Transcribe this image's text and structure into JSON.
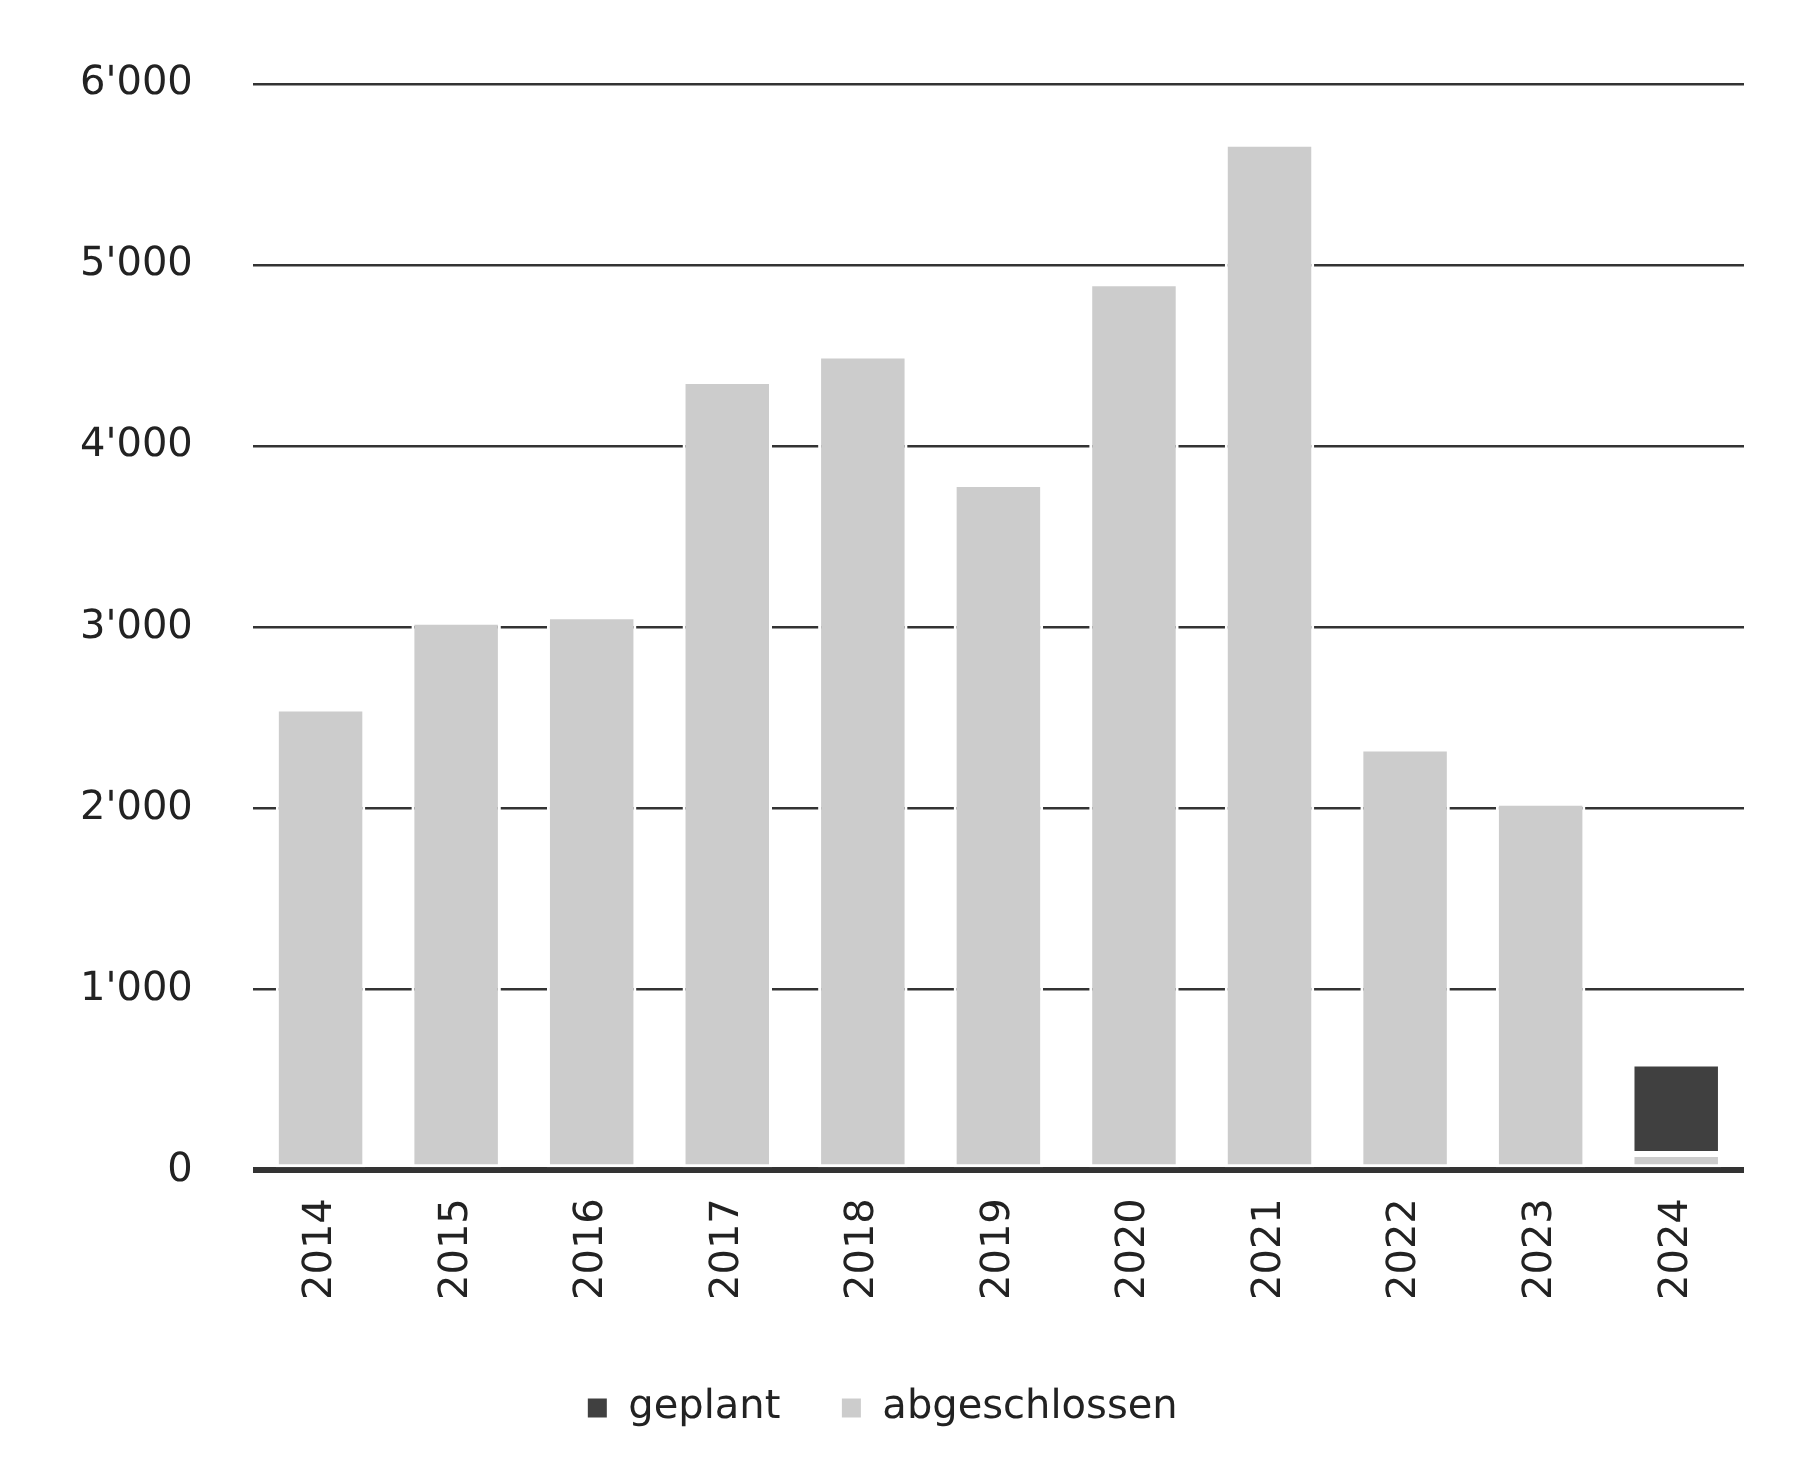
{
  "chart_data": {
    "type": "bar",
    "stacked": true,
    "categories": [
      "2014",
      "2015",
      "2016",
      "2017",
      "2018",
      "2019",
      "2020",
      "2021",
      "2022",
      "2023",
      "2024"
    ],
    "series": [
      {
        "name": "abgeschlossen",
        "color": "#cccccc",
        "values": [
          2550,
          3030,
          3060,
          4360,
          4500,
          3790,
          4900,
          5670,
          2330,
          2030,
          90
        ]
      },
      {
        "name": "geplant",
        "color": "#404040",
        "values": [
          null,
          null,
          null,
          null,
          null,
          null,
          null,
          null,
          null,
          null,
          500
        ]
      }
    ],
    "ylim": [
      0,
      6000
    ],
    "yticks": [
      {
        "value": 0,
        "label": "0"
      },
      {
        "value": 1000,
        "label": "1'000"
      },
      {
        "value": 2000,
        "label": "2'000"
      },
      {
        "value": 3000,
        "label": "3'000"
      },
      {
        "value": 4000,
        "label": "4'000"
      },
      {
        "value": 5000,
        "label": "5'000"
      },
      {
        "value": 6000,
        "label": "6'000"
      }
    ],
    "grid": "y",
    "legend": "bottom"
  }
}
